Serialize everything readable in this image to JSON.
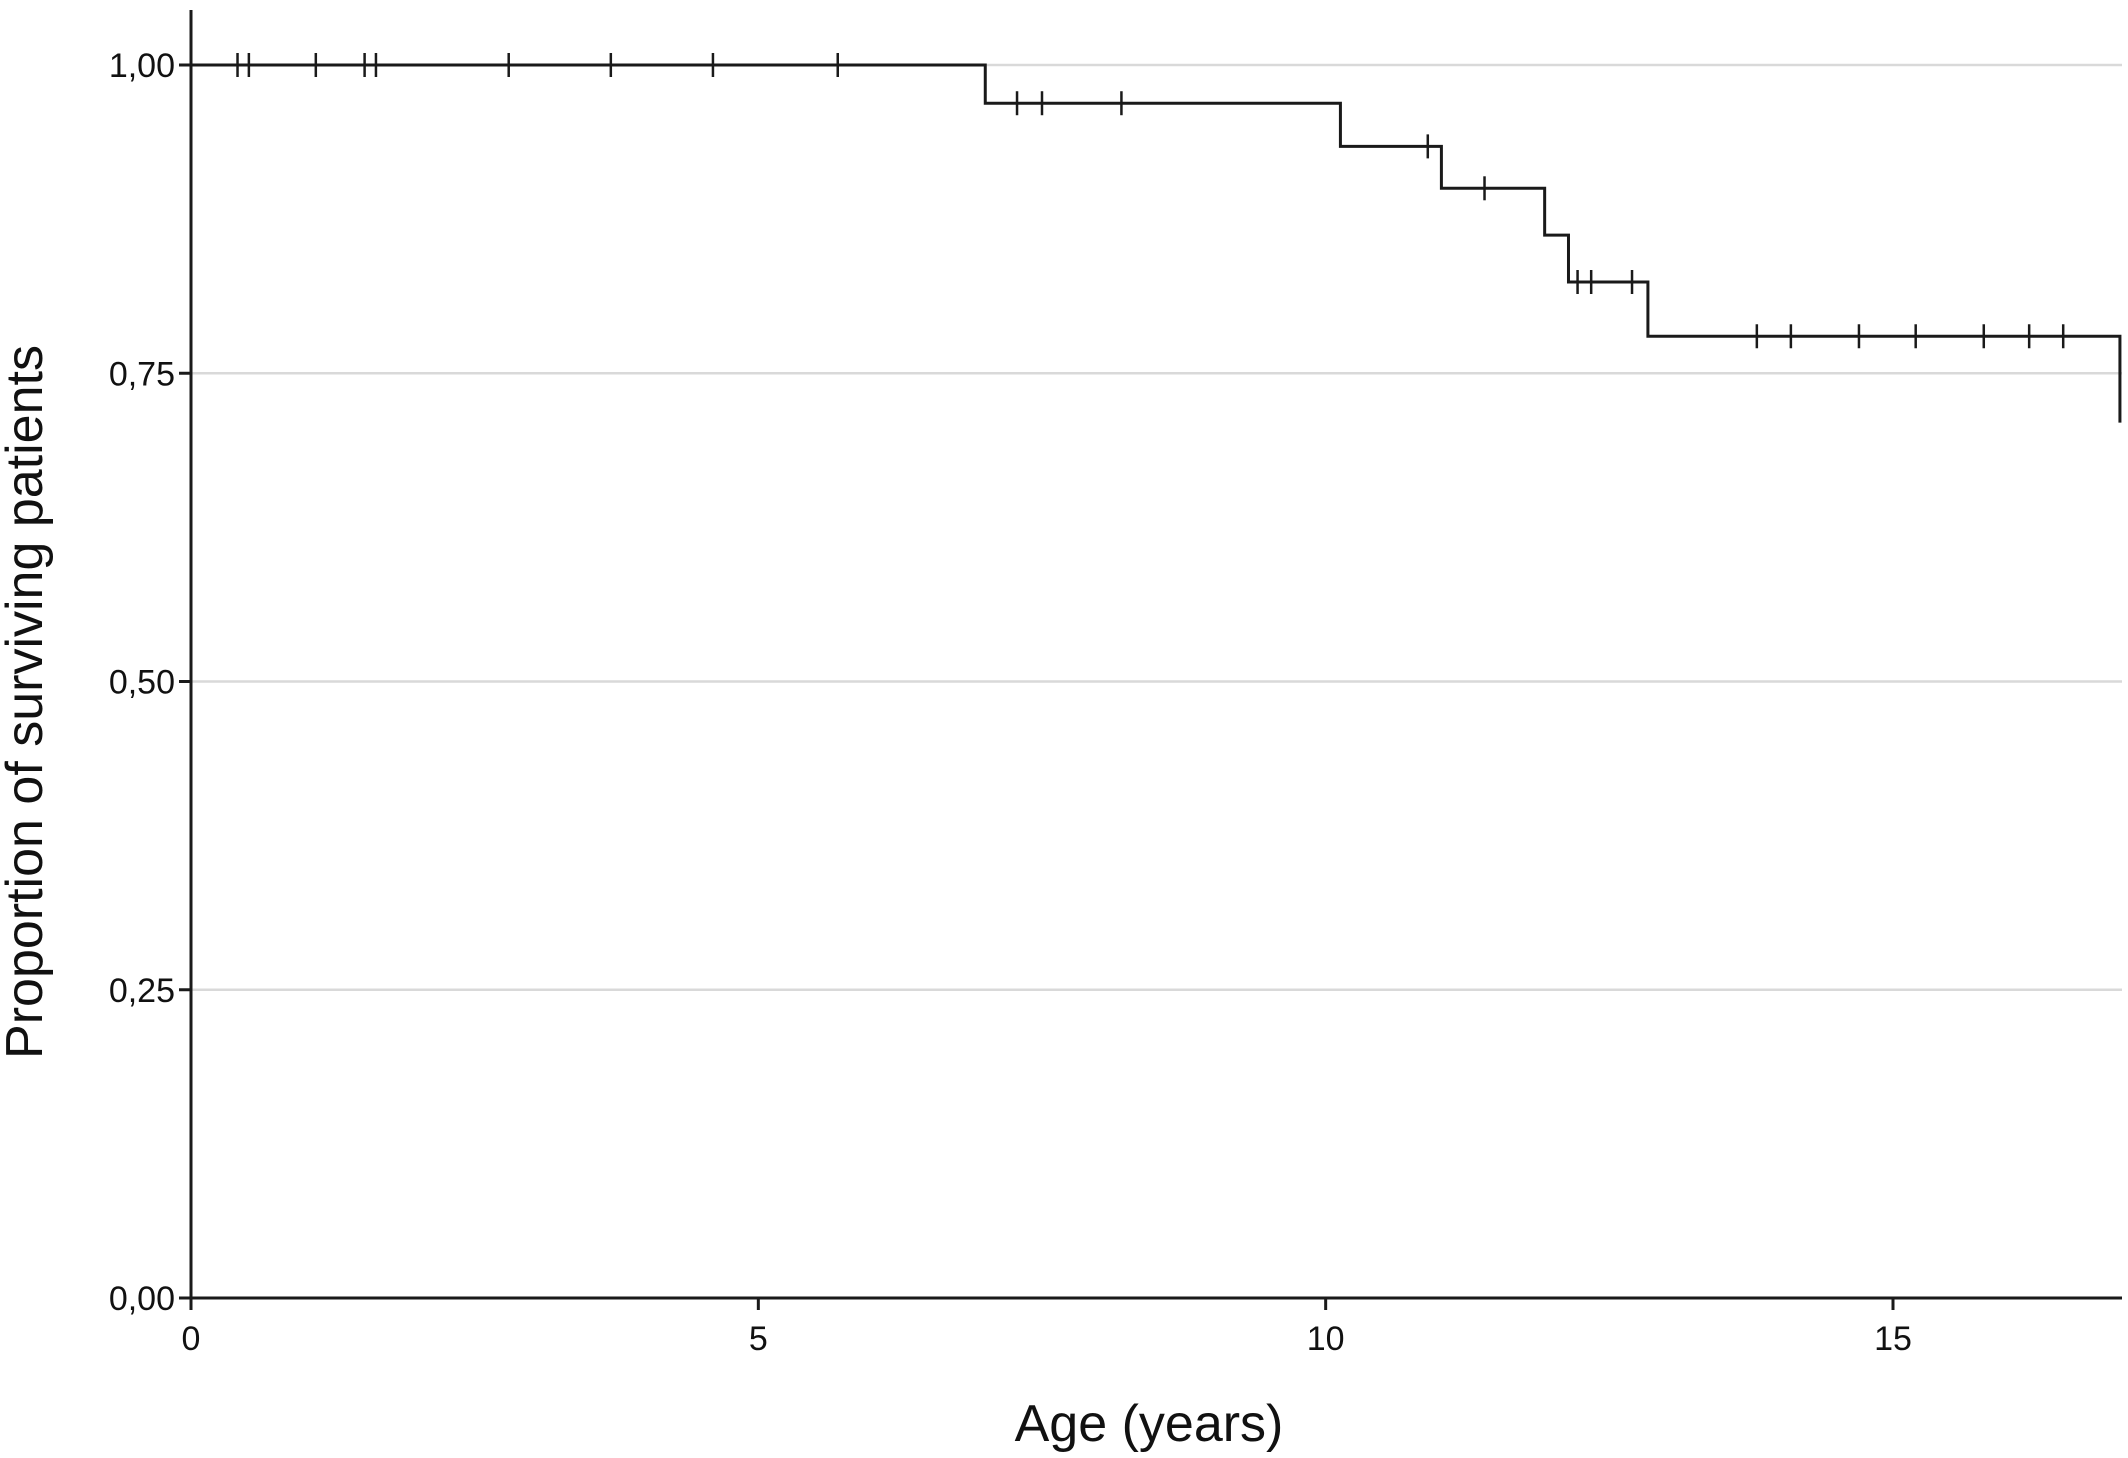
{
  "chart_data": {
    "type": "line",
    "style": "kaplan-meier step curve with censor marks",
    "title": "",
    "xlabel": "Age (years)",
    "ylabel": "Proportion of surviving patients",
    "xlim": [
      0,
      17
    ],
    "ylim": [
      0,
      1
    ],
    "x_ticks": [
      {
        "value": 0,
        "label": "0"
      },
      {
        "value": 5,
        "label": "5"
      },
      {
        "value": 10,
        "label": "10"
      },
      {
        "value": 15,
        "label": "15"
      }
    ],
    "y_ticks": [
      {
        "value": 0,
        "label": "0,00"
      },
      {
        "value": 0.25,
        "label": "0,25"
      },
      {
        "value": 0.5,
        "label": "0,50"
      },
      {
        "value": 0.75,
        "label": "0,75"
      },
      {
        "value": 1,
        "label": "1,00"
      }
    ],
    "grid": "horizontal",
    "series": [
      {
        "steps": [
          {
            "x": 0,
            "y": 1.0
          },
          {
            "x": 7.0,
            "y": 0.969
          },
          {
            "x": 10.13,
            "y": 0.934
          },
          {
            "x": 11.02,
            "y": 0.9
          },
          {
            "x": 11.93,
            "y": 0.862
          },
          {
            "x": 12.14,
            "y": 0.824
          },
          {
            "x": 12.84,
            "y": 0.78
          },
          {
            "x": 17.0,
            "y": 0.71
          }
        ],
        "end_x": 17.0,
        "censored": [
          {
            "x": 0.41,
            "y": 1.0
          },
          {
            "x": 0.51,
            "y": 1.0
          },
          {
            "x": 1.1,
            "y": 1.0
          },
          {
            "x": 1.53,
            "y": 1.0
          },
          {
            "x": 1.63,
            "y": 1.0
          },
          {
            "x": 2.8,
            "y": 1.0
          },
          {
            "x": 3.7,
            "y": 1.0
          },
          {
            "x": 4.6,
            "y": 1.0
          },
          {
            "x": 5.7,
            "y": 1.0
          },
          {
            "x": 7.28,
            "y": 0.969
          },
          {
            "x": 7.5,
            "y": 0.969
          },
          {
            "x": 8.2,
            "y": 0.969
          },
          {
            "x": 10.9,
            "y": 0.934
          },
          {
            "x": 11.4,
            "y": 0.9
          },
          {
            "x": 12.22,
            "y": 0.824
          },
          {
            "x": 12.34,
            "y": 0.824
          },
          {
            "x": 12.7,
            "y": 0.824
          },
          {
            "x": 13.8,
            "y": 0.78
          },
          {
            "x": 14.1,
            "y": 0.78
          },
          {
            "x": 14.7,
            "y": 0.78
          },
          {
            "x": 15.2,
            "y": 0.78
          },
          {
            "x": 15.8,
            "y": 0.78
          },
          {
            "x": 16.2,
            "y": 0.78
          },
          {
            "x": 16.5,
            "y": 0.78
          }
        ]
      }
    ]
  },
  "colors": {
    "line": "#1a1a1a",
    "axis": "#1a1a1a",
    "grid": "#d9d9d9",
    "background": "#ffffff"
  }
}
